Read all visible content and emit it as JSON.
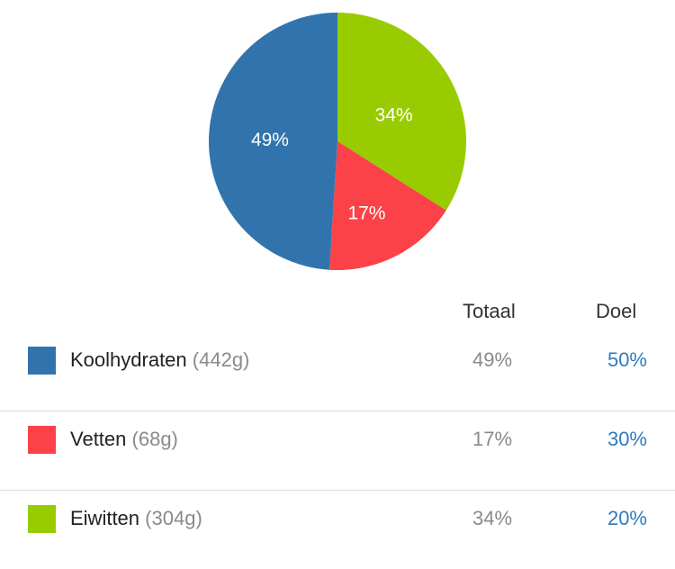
{
  "chart_data": {
    "type": "pie",
    "slices": [
      {
        "label": "49%",
        "value": 49,
        "color": "#3174ad"
      },
      {
        "label": "34%",
        "value": 34,
        "color": "#99cc00"
      },
      {
        "label": "17%",
        "value": 17,
        "color": "#fa4248"
      }
    ]
  },
  "table": {
    "header": {
      "totaal": "Totaal",
      "doel": "Doel"
    },
    "rows": [
      {
        "name": "Koolhydraten",
        "grams": "(442g)",
        "total": "49%",
        "goal": "50%",
        "color": "#3174ad"
      },
      {
        "name": "Vetten",
        "grams": "(68g)",
        "total": "17%",
        "goal": "30%",
        "color": "#fa4248"
      },
      {
        "name": "Eiwitten",
        "grams": "(304g)",
        "total": "34%",
        "goal": "20%",
        "color": "#99cc00"
      }
    ]
  }
}
